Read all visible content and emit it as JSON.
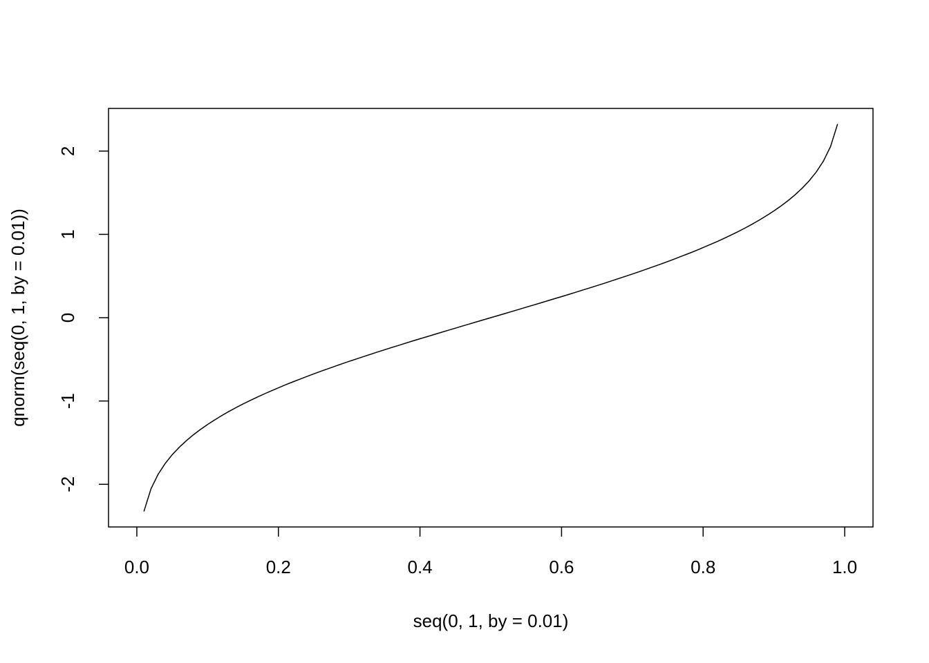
{
  "chart_data": {
    "type": "line",
    "x_label": "seq(0, 1, by = 0.01)",
    "y_label": "qnorm(seq(0, 1, by = 0.01))",
    "color": "#000000",
    "x": [
      0,
      0.01,
      0.02,
      0.03,
      0.04,
      0.05,
      0.06,
      0.07,
      0.08,
      0.09,
      0.1,
      0.11,
      0.12,
      0.13,
      0.14,
      0.15,
      0.16,
      0.17,
      0.18,
      0.19,
      0.2,
      0.21,
      0.22,
      0.23,
      0.24,
      0.25,
      0.26,
      0.27,
      0.28,
      0.29,
      0.3,
      0.31,
      0.32,
      0.33,
      0.34,
      0.35,
      0.36,
      0.37,
      0.38,
      0.39,
      0.4,
      0.41,
      0.42,
      0.43,
      0.44,
      0.45,
      0.46,
      0.47,
      0.48,
      0.49,
      0.5,
      0.51,
      0.52,
      0.53,
      0.54,
      0.55,
      0.56,
      0.57,
      0.58,
      0.59,
      0.6,
      0.61,
      0.62,
      0.63,
      0.64,
      0.65,
      0.66,
      0.67,
      0.68,
      0.69,
      0.7,
      0.71,
      0.72,
      0.73,
      0.74,
      0.75,
      0.76,
      0.77,
      0.78,
      0.79,
      0.8,
      0.81,
      0.82,
      0.83,
      0.84,
      0.85,
      0.86,
      0.87,
      0.88,
      0.89,
      0.9,
      0.91,
      0.92,
      0.93,
      0.94,
      0.95,
      0.96,
      0.97,
      0.98,
      0.99,
      1
    ],
    "values": [
      null,
      -2.326,
      -2.054,
      -1.881,
      -1.751,
      -1.645,
      -1.555,
      -1.476,
      -1.405,
      -1.341,
      -1.282,
      -1.227,
      -1.175,
      -1.126,
      -1.08,
      -1.036,
      -0.994,
      -0.954,
      -0.915,
      -0.878,
      -0.842,
      -0.806,
      -0.772,
      -0.739,
      -0.706,
      -0.674,
      -0.643,
      -0.613,
      -0.583,
      -0.553,
      -0.524,
      -0.496,
      -0.468,
      -0.44,
      -0.412,
      -0.385,
      -0.358,
      -0.332,
      -0.305,
      -0.279,
      -0.253,
      -0.228,
      -0.202,
      -0.176,
      -0.151,
      -0.126,
      -0.1,
      -0.075,
      -0.05,
      -0.025,
      0,
      0.025,
      0.05,
      0.075,
      0.1,
      0.126,
      0.151,
      0.176,
      0.202,
      0.228,
      0.253,
      0.279,
      0.305,
      0.332,
      0.358,
      0.385,
      0.412,
      0.44,
      0.468,
      0.496,
      0.524,
      0.553,
      0.583,
      0.613,
      0.643,
      0.674,
      0.706,
      0.739,
      0.772,
      0.806,
      0.842,
      0.878,
      0.915,
      0.954,
      0.994,
      1.036,
      1.08,
      1.126,
      1.175,
      1.227,
      1.282,
      1.341,
      1.405,
      1.476,
      1.555,
      1.645,
      1.751,
      1.881,
      2.054,
      2.326,
      null
    ],
    "xlim": [
      -0.04,
      1.04
    ],
    "ylim": [
      -2.512,
      2.512
    ],
    "xticks": [
      {
        "value": 0,
        "label": "0.0"
      },
      0.2,
      0.4,
      0.6,
      0.8,
      {
        "value": 1,
        "label": "1.0"
      }
    ],
    "yticks": [
      -2,
      -1,
      0,
      1,
      2
    ]
  }
}
